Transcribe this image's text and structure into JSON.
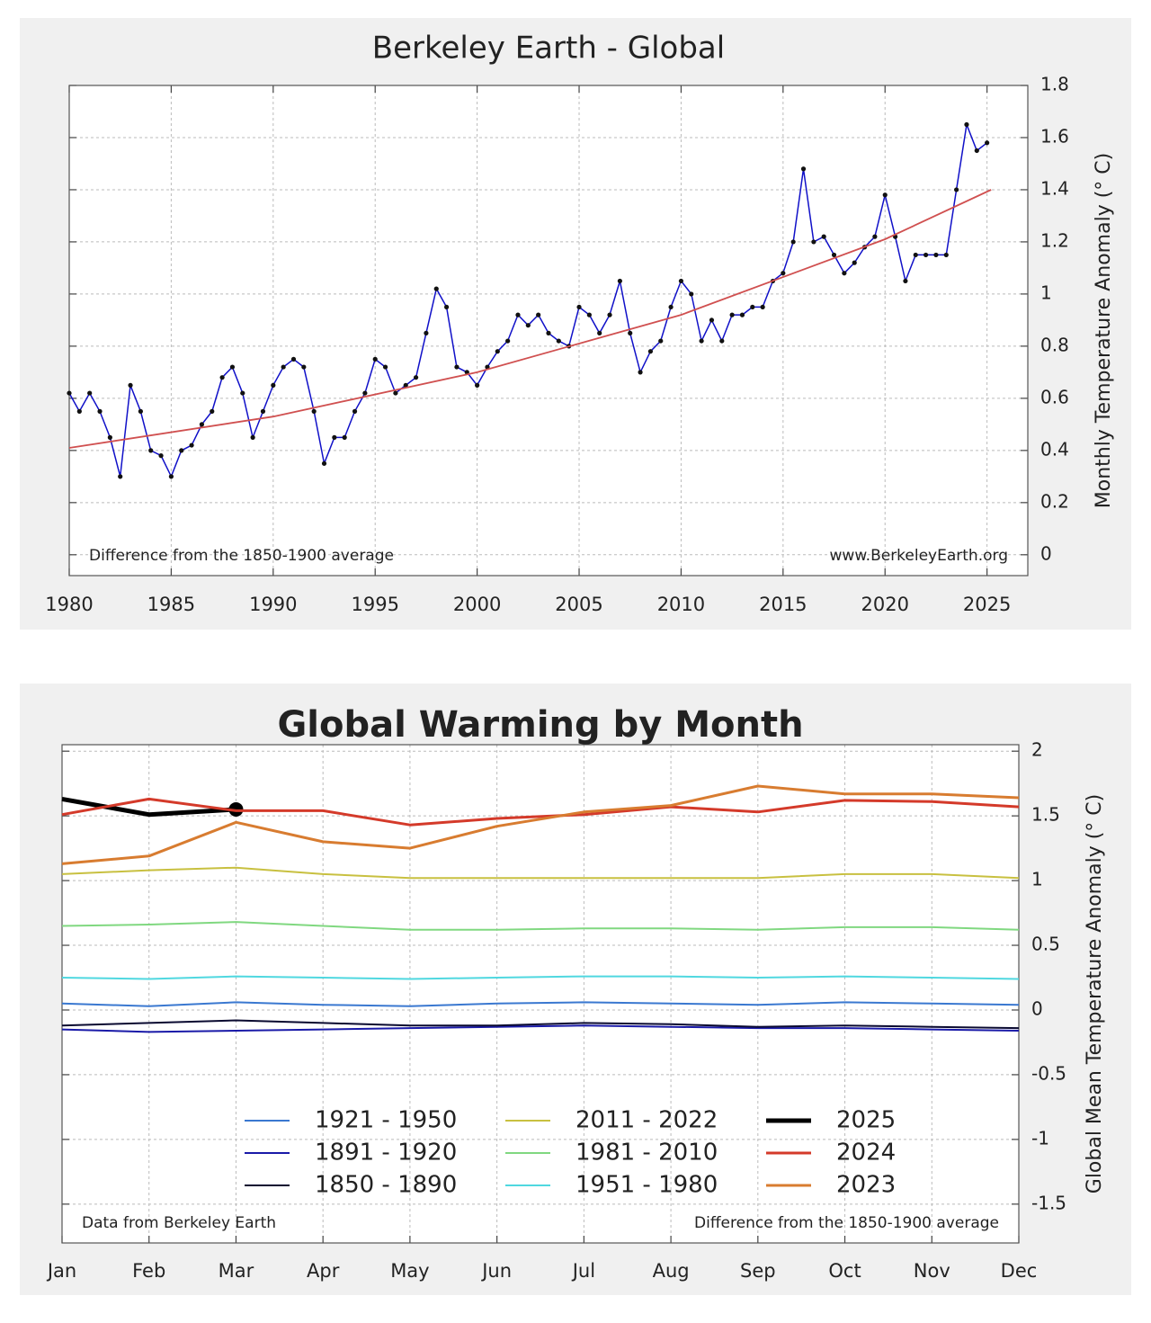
{
  "chart_data": [
    {
      "type": "line",
      "title": "Berkeley Earth - Global",
      "y_label": "Monthly Temperature Anomaly (° C)",
      "annotations": [
        "Difference from the 1850-1900 average",
        "www.BerkeleyEarth.org"
      ],
      "x": [
        1980,
        1980.5,
        1981,
        1981.5,
        1982,
        1982.5,
        1983,
        1983.5,
        1984,
        1984.5,
        1985,
        1985.5,
        1986,
        1986.5,
        1987,
        1987.5,
        1988,
        1988.5,
        1989,
        1989.5,
        1990,
        1990.5,
        1991,
        1991.5,
        1992,
        1992.5,
        1993,
        1993.5,
        1994,
        1994.5,
        1995,
        1995.5,
        1996,
        1996.5,
        1997,
        1997.5,
        1998,
        1998.5,
        1999,
        1999.5,
        2000,
        2000.5,
        2001,
        2001.5,
        2002,
        2002.5,
        2003,
        2003.5,
        2004,
        2004.5,
        2005,
        2005.5,
        2006,
        2006.5,
        2007,
        2007.5,
        2008,
        2008.5,
        2009,
        2009.5,
        2010,
        2010.5,
        2011,
        2011.5,
        2012,
        2012.5,
        2013,
        2013.5,
        2014,
        2014.5,
        2015,
        2015.5,
        2016,
        2016.5,
        2017,
        2017.5,
        2018,
        2018.5,
        2019,
        2019.5,
        2020,
        2020.5,
        2021,
        2021.5,
        2022,
        2022.5,
        2023,
        2023.5,
        2024,
        2024.5,
        2025
      ],
      "values": [
        0.62,
        0.55,
        0.62,
        0.55,
        0.45,
        0.3,
        0.65,
        0.55,
        0.4,
        0.38,
        0.3,
        0.4,
        0.42,
        0.5,
        0.55,
        0.68,
        0.72,
        0.62,
        0.45,
        0.55,
        0.65,
        0.72,
        0.75,
        0.72,
        0.55,
        0.35,
        0.45,
        0.45,
        0.55,
        0.62,
        0.75,
        0.72,
        0.62,
        0.65,
        0.68,
        0.85,
        1.02,
        0.95,
        0.72,
        0.7,
        0.65,
        0.72,
        0.78,
        0.82,
        0.92,
        0.88,
        0.92,
        0.85,
        0.82,
        0.8,
        0.95,
        0.92,
        0.85,
        0.92,
        1.05,
        0.85,
        0.7,
        0.78,
        0.82,
        0.95,
        1.05,
        1.0,
        0.82,
        0.9,
        0.82,
        0.92,
        0.92,
        0.95,
        0.95,
        1.05,
        1.08,
        1.2,
        1.48,
        1.2,
        1.22,
        1.15,
        1.08,
        1.12,
        1.18,
        1.22,
        1.38,
        1.22,
        1.05,
        1.15,
        1.15,
        1.15,
        1.15,
        1.4,
        1.65,
        1.55,
        1.58
      ],
      "color": "#1010c8",
      "trend": {
        "x": [
          1980,
          1990,
          2000,
          2010,
          2020,
          2025.2
        ],
        "values": [
          0.41,
          0.53,
          0.7,
          0.92,
          1.21,
          1.4
        ],
        "color": "#d05050"
      },
      "xlim": [
        1980,
        2027
      ],
      "xticks": [
        1980,
        1985,
        1990,
        1995,
        2000,
        2005,
        2010,
        2015,
        2020,
        2025
      ],
      "ylim": [
        -0.08,
        1.8
      ],
      "yticks": [
        0,
        0.2,
        0.4,
        0.6,
        0.8,
        1,
        1.2,
        1.4,
        1.6,
        1.8
      ],
      "grid": true
    },
    {
      "type": "line",
      "title": "Global Warming by Month",
      "y_label": "Global Mean Temperature Anomaly (° C)",
      "annotations": [
        "Data from Berkeley Earth",
        "Difference from the 1850-1900 average"
      ],
      "categories": [
        "Jan",
        "Feb",
        "Mar",
        "Apr",
        "May",
        "Jun",
        "Jul",
        "Aug",
        "Sep",
        "Oct",
        "Nov",
        "Dec"
      ],
      "series": [
        {
          "name": "1921 - 1950",
          "color": "#3a78d0",
          "linewidth": 2,
          "values": [
            0.05,
            0.03,
            0.06,
            0.04,
            0.03,
            0.05,
            0.06,
            0.05,
            0.04,
            0.06,
            0.05,
            0.04
          ]
        },
        {
          "name": "1891 - 1920",
          "color": "#1a1aa8",
          "linewidth": 2,
          "values": [
            -0.15,
            -0.17,
            -0.16,
            -0.15,
            -0.14,
            -0.13,
            -0.12,
            -0.13,
            -0.14,
            -0.14,
            -0.15,
            -0.16
          ]
        },
        {
          "name": "1850 - 1890",
          "color": "#0a0a30",
          "linewidth": 2,
          "values": [
            -0.12,
            -0.1,
            -0.08,
            -0.1,
            -0.12,
            -0.12,
            -0.1,
            -0.11,
            -0.13,
            -0.12,
            -0.13,
            -0.14
          ]
        },
        {
          "name": "2011 - 2022",
          "color": "#c8c040",
          "linewidth": 2,
          "values": [
            1.05,
            1.08,
            1.1,
            1.05,
            1.02,
            1.02,
            1.02,
            1.02,
            1.02,
            1.05,
            1.05,
            1.02
          ]
        },
        {
          "name": "1981 - 2010",
          "color": "#80d880",
          "linewidth": 2,
          "values": [
            0.65,
            0.66,
            0.68,
            0.65,
            0.62,
            0.62,
            0.63,
            0.63,
            0.62,
            0.64,
            0.64,
            0.62
          ]
        },
        {
          "name": "1951 - 1980",
          "color": "#50d8e0",
          "linewidth": 2,
          "values": [
            0.25,
            0.24,
            0.26,
            0.25,
            0.24,
            0.25,
            0.26,
            0.26,
            0.25,
            0.26,
            0.25,
            0.24
          ]
        },
        {
          "name": "2025",
          "color": "#000000",
          "linewidth": 5,
          "values": [
            1.63,
            1.51,
            1.55,
            null,
            null,
            null,
            null,
            null,
            null,
            null,
            null,
            null
          ]
        },
        {
          "name": "2024",
          "color": "#d43a2a",
          "linewidth": 3,
          "values": [
            1.51,
            1.63,
            1.54,
            1.54,
            1.43,
            1.48,
            1.51,
            1.57,
            1.53,
            1.62,
            1.61,
            1.57
          ]
        },
        {
          "name": "2023",
          "color": "#d87c30",
          "linewidth": 3,
          "values": [
            1.13,
            1.19,
            1.45,
            1.3,
            1.25,
            1.42,
            1.53,
            1.58,
            1.73,
            1.67,
            1.67,
            1.64
          ]
        }
      ],
      "ylim": [
        -1.8,
        2.05
      ],
      "yticks": [
        -1.5,
        -1,
        -0.5,
        0,
        0.5,
        1,
        1.5,
        2
      ],
      "grid": true
    }
  ]
}
